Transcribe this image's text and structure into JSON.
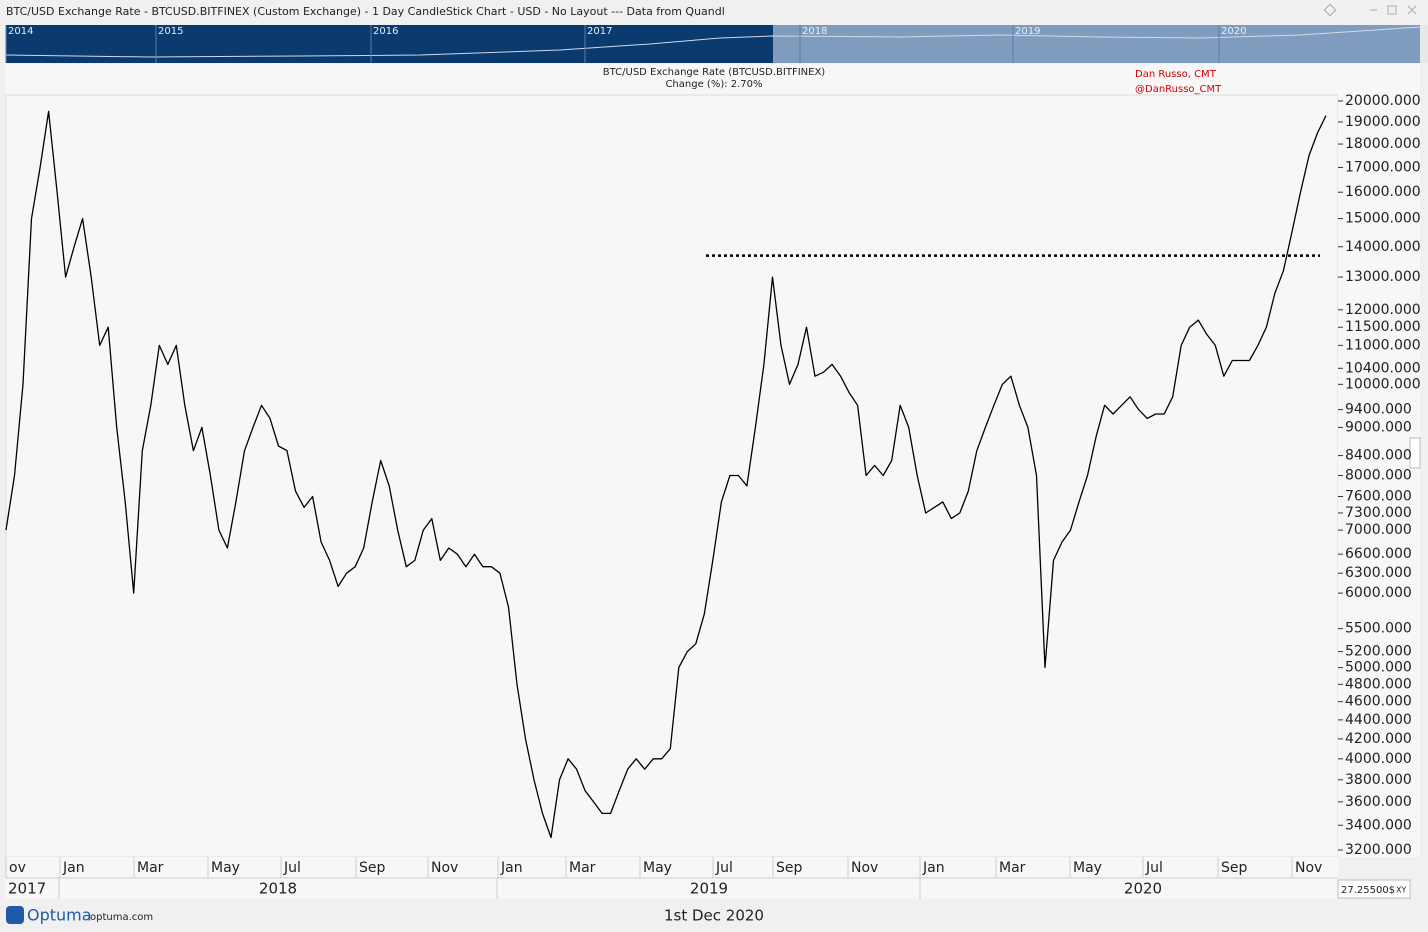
{
  "window_title": "BTC/USD Exchange Rate - BTCUSD.BITFINEX (Custom Exchange) - 1 Day CandleStick Chart - USD - No Layout --- Data from Quandl",
  "navigator_years": [
    "2014",
    "2015",
    "2016",
    "2017",
    "2018",
    "2019",
    "2020"
  ],
  "chart_data": {
    "type": "line",
    "title": "BTC/USD Exchange Rate (BTCUSD.BITFINEX)",
    "subtitle": "Change (%): 2.70%",
    "annotations": [
      "Dan Russo, CMT",
      "@DanRusso_CMT"
    ],
    "reference_value": 13700,
    "log_scale": true,
    "ylim": [
      3146,
      20296
    ],
    "yticks": [
      {
        "value": 20000,
        "label": "20000.000"
      },
      {
        "value": 19000,
        "label": "19000.000"
      },
      {
        "value": 18000,
        "label": "18000.000"
      },
      {
        "value": 17000,
        "label": "17000.000"
      },
      {
        "value": 16000,
        "label": "16000.000"
      },
      {
        "value": 15000,
        "label": "15000.000"
      },
      {
        "value": 14000,
        "label": "14000.000"
      },
      {
        "value": 13000,
        "label": "13000.000"
      },
      {
        "value": 12000,
        "label": "12000.000"
      },
      {
        "value": 11500,
        "label": "11500.000"
      },
      {
        "value": 11000,
        "label": "11000.000"
      },
      {
        "value": 10400,
        "label": "10400.000"
      },
      {
        "value": 10000,
        "label": "10000.000"
      },
      {
        "value": 9400,
        "label": "9400.000"
      },
      {
        "value": 9000,
        "label": "9000.000"
      },
      {
        "value": 8400,
        "label": "8400.000"
      },
      {
        "value": 8000,
        "label": "8000.000"
      },
      {
        "value": 7600,
        "label": "7600.000"
      },
      {
        "value": 7300,
        "label": "7300.000"
      },
      {
        "value": 7000,
        "label": "7000.000"
      },
      {
        "value": 6600,
        "label": "6600.000"
      },
      {
        "value": 6300,
        "label": "6300.000"
      },
      {
        "value": 6000,
        "label": "6000.000"
      },
      {
        "value": 5500,
        "label": "5500.000"
      },
      {
        "value": 5200,
        "label": "5200.000"
      },
      {
        "value": 5000,
        "label": "5000.000"
      },
      {
        "value": 4800,
        "label": "4800.000"
      },
      {
        "value": 4600,
        "label": "4600.000"
      },
      {
        "value": 4400,
        "label": "4400.000"
      },
      {
        "value": 4200,
        "label": "4200.000"
      },
      {
        "value": 4000,
        "label": "4000.000"
      },
      {
        "value": 3800,
        "label": "3800.000"
      },
      {
        "value": 3600,
        "label": "3600.000"
      },
      {
        "value": 3400,
        "label": "3400.000"
      },
      {
        "value": 3200,
        "label": "3200.000"
      }
    ],
    "month_labels": [
      "ov",
      "Jan",
      "Mar",
      "May",
      "Jul",
      "Sep",
      "Nov",
      "Jan",
      "Mar",
      "May",
      "Jul",
      "Sep",
      "Nov",
      "Jan",
      "Mar",
      "May",
      "Jul",
      "Sep",
      "Nov"
    ],
    "year_labels": [
      "2017",
      "2018",
      "2019",
      "2020"
    ],
    "series": [
      {
        "name": "BTC/USD",
        "color": "#000000",
        "values": [
          7000,
          8000,
          10000,
          15000,
          17000,
          19500,
          16000,
          13000,
          14000,
          15000,
          13000,
          11000,
          11500,
          9000,
          7500,
          6000,
          8500,
          9500,
          11000,
          10500,
          11000,
          9500,
          8500,
          9000,
          8000,
          7000,
          6700,
          7500,
          8500,
          9000,
          9500,
          9200,
          8600,
          8500,
          7700,
          7400,
          7600,
          6800,
          6500,
          6100,
          6300,
          6400,
          6700,
          7500,
          8300,
          7800,
          7000,
          6400,
          6500,
          7000,
          7200,
          6500,
          6700,
          6600,
          6400,
          6600,
          6400,
          6400,
          6300,
          5800,
          4800,
          4200,
          3800,
          3500,
          3300,
          3800,
          4000,
          3900,
          3700,
          3600,
          3500,
          3500,
          3700,
          3900,
          4000,
          3900,
          4000,
          4000,
          4100,
          5000,
          5200,
          5300,
          5700,
          6500,
          7500,
          8000,
          8000,
          7800,
          9000,
          10500,
          13000,
          11000,
          10000,
          10500,
          11500,
          10200,
          10300,
          10500,
          10200,
          9800,
          9500,
          8000,
          8200,
          8000,
          8300,
          9500,
          9000,
          8000,
          7300,
          7400,
          7500,
          7200,
          7300,
          7700,
          8500,
          9000,
          9500,
          10000,
          10200,
          9500,
          9000,
          8000,
          5000,
          6500,
          6800,
          7000,
          7500,
          8000,
          8800,
          9500,
          9300,
          9500,
          9700,
          9400,
          9200,
          9300,
          9300,
          9700,
          11000,
          11500,
          11700,
          11300,
          11000,
          10200,
          10600,
          10600,
          10600,
          11000,
          11500,
          12500,
          13200,
          14500,
          16000,
          17500,
          18500,
          19300
        ]
      }
    ]
  },
  "axis_readout": "27.25500$",
  "axis_mode": "XY",
  "footer": {
    "brand": "Optuma",
    "site": "optuma.com",
    "date": "1st Dec 2020"
  }
}
